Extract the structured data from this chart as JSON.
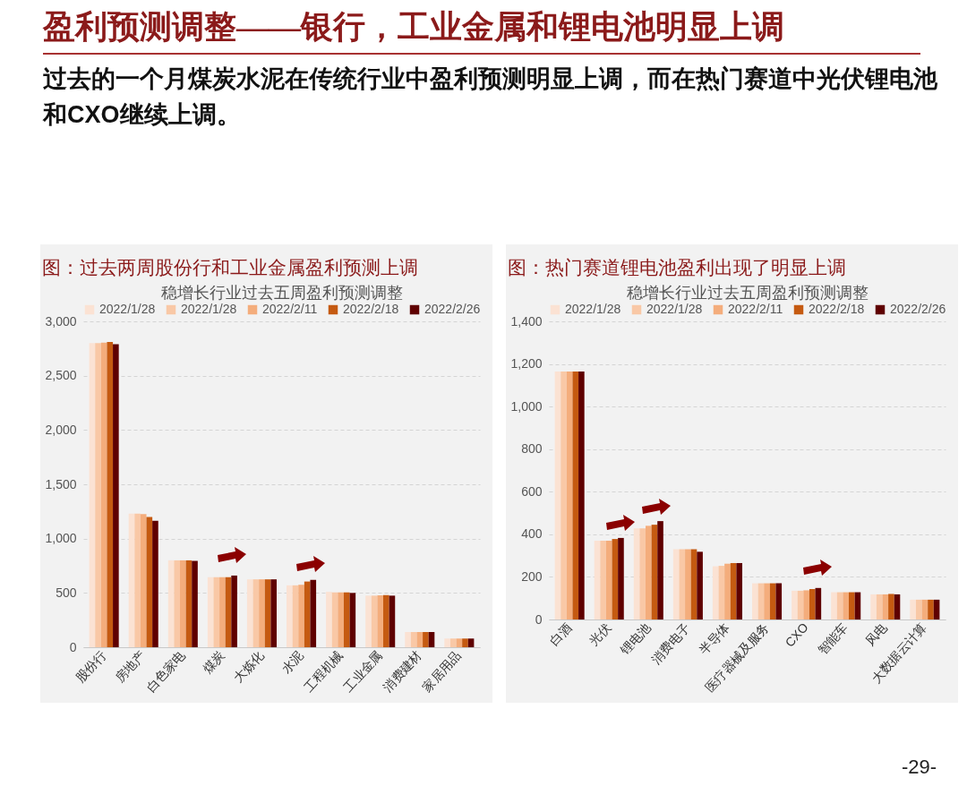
{
  "chart_data": [
    {
      "type": "other",
      "title": "盈利预测调整——银行，工业金属和锂电池明显上调",
      "annotations": [
        "过去的一个月煤炭水泥在传统行业中盈利预测明显上调，而在热门赛道中光伏锂电池和CXO继续上调。",
        "-29-"
      ]
    },
    {
      "type": "bar",
      "title": "图：过去两周股份行和工业金属盈利预测上调",
      "subtitle": "稳增长行业过去五周盈利预测调整",
      "categories": [
        "股份行",
        "房地产",
        "白色家电",
        "煤炭",
        "大炼化",
        "水泥",
        "工程机械",
        "工业金属",
        "消费建材",
        "家居用品"
      ],
      "series": [
        {
          "name": "2022/1/28",
          "color": "#fbe2d3",
          "values": [
            2800,
            1230,
            800,
            645,
            625,
            570,
            510,
            475,
            140,
            80
          ]
        },
        {
          "name": "2022/1/28",
          "color": "#f9c8a6",
          "values": [
            2800,
            1230,
            800,
            645,
            625,
            570,
            505,
            475,
            140,
            80
          ]
        },
        {
          "name": "2022/2/11",
          "color": "#f4ad7c",
          "values": [
            2805,
            1225,
            800,
            645,
            625,
            575,
            505,
            478,
            140,
            80
          ]
        },
        {
          "name": "2022/2/18",
          "color": "#c55a11",
          "values": [
            2810,
            1200,
            800,
            645,
            625,
            605,
            505,
            480,
            140,
            80
          ]
        },
        {
          "name": "2022/2/26",
          "color": "#5f0000",
          "values": [
            2790,
            1165,
            795,
            660,
            625,
            620,
            500,
            475,
            140,
            80
          ]
        }
      ],
      "ylim": [
        0,
        3000
      ],
      "yticks": [
        {
          "value": 0,
          "label": "0"
        },
        {
          "value": 500,
          "label": "500"
        },
        {
          "value": 1000,
          "label": "1,000"
        },
        {
          "value": 1500,
          "label": "1,500"
        },
        {
          "value": 2000,
          "label": "2,000"
        },
        {
          "value": 2500,
          "label": "2,500"
        },
        {
          "value": 3000,
          "label": "3,000"
        }
      ],
      "grid": "y",
      "legend": "top"
    },
    {
      "type": "bar",
      "title": "图：热门赛道锂电池盈利出现了明显上调",
      "subtitle": "稳增长行业过去五周盈利预测调整",
      "categories": [
        "白酒",
        "光伏",
        "锂电池",
        "消费电子",
        "半导体",
        "医疗器械及服务",
        "CXO",
        "智能车",
        "风电",
        "大数据云计算"
      ],
      "series": [
        {
          "name": "2022/1/28",
          "color": "#fbe2d3",
          "values": [
            1165,
            370,
            428,
            330,
            250,
            170,
            135,
            128,
            118,
            93
          ]
        },
        {
          "name": "2022/1/28",
          "color": "#f9c8a6",
          "values": [
            1165,
            370,
            428,
            330,
            252,
            170,
            135,
            128,
            118,
            93
          ]
        },
        {
          "name": "2022/2/11",
          "color": "#f4ad7c",
          "values": [
            1165,
            370,
            440,
            330,
            262,
            170,
            137,
            128,
            118,
            93
          ]
        },
        {
          "name": "2022/2/18",
          "color": "#c55a11",
          "values": [
            1165,
            378,
            445,
            330,
            265,
            170,
            143,
            128,
            120,
            93
          ]
        },
        {
          "name": "2022/2/26",
          "color": "#5f0000",
          "values": [
            1165,
            383,
            462,
            318,
            265,
            170,
            148,
            128,
            118,
            93
          ]
        }
      ],
      "ylim": [
        0,
        1400
      ],
      "yticks": [
        {
          "value": 0,
          "label": "0"
        },
        {
          "value": 200,
          "label": "200"
        },
        {
          "value": 400,
          "label": "400"
        },
        {
          "value": 600,
          "label": "600"
        },
        {
          "value": 800,
          "label": "800"
        },
        {
          "value": 1000,
          "label": "1,000"
        },
        {
          "value": 1200,
          "label": "1,200"
        },
        {
          "value": 1400,
          "label": "1,400"
        }
      ],
      "grid": "y",
      "legend": "top"
    }
  ]
}
